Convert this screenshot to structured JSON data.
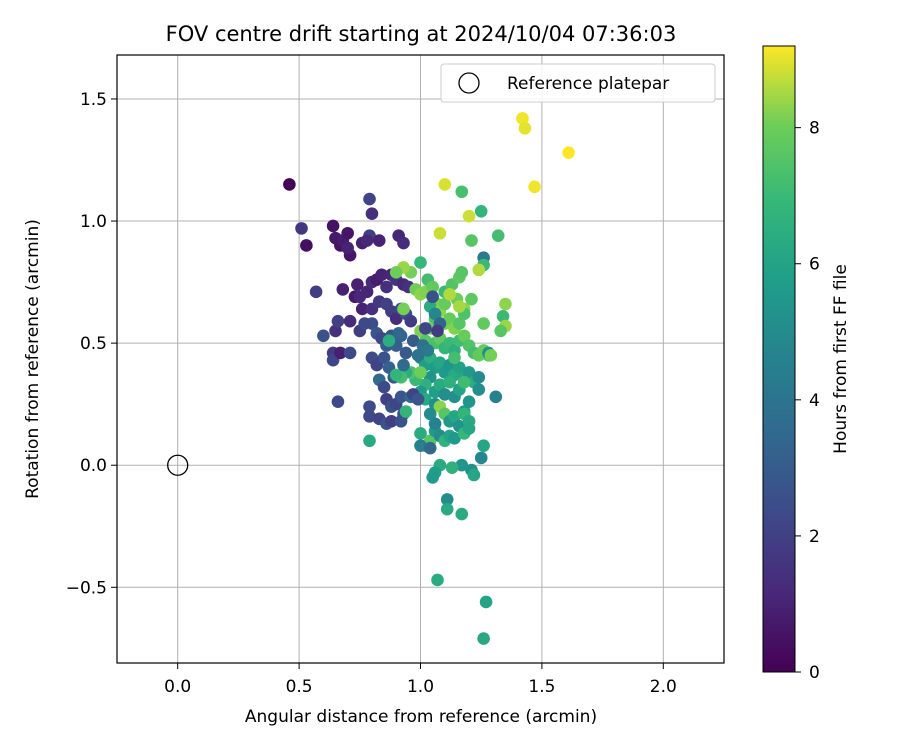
{
  "chart_data": {
    "type": "scatter",
    "title": "FOV centre drift starting at 2024/10/04 07:36:03",
    "xlabel": "Angular distance from reference (arcmin)",
    "ylabel": "Rotation from reference (arcmin)",
    "xlim": [
      -0.25,
      2.25
    ],
    "ylim": [
      -0.81,
      1.68
    ],
    "x_ticks": [
      0.0,
      0.5,
      1.0,
      1.5,
      2.0
    ],
    "x_tick_labels": [
      "0.0",
      "0.5",
      "1.0",
      "1.5",
      "2.0"
    ],
    "y_ticks": [
      -0.5,
      0.0,
      0.5,
      1.0,
      1.5
    ],
    "y_tick_labels": [
      "−0.5",
      "0.0",
      "0.5",
      "1.0",
      "1.5"
    ],
    "grid": true,
    "legend": {
      "placement": "top-right",
      "entries": [
        "Reference platepar"
      ]
    },
    "reference_point": {
      "name": "Reference platepar",
      "x": 0.0,
      "y": 0.0,
      "marker": "open-circle"
    },
    "colorbar": {
      "label": "Hours from first FF file",
      "range": [
        0,
        9.2
      ],
      "ticks": [
        0,
        2,
        4,
        6,
        8
      ],
      "tick_labels": [
        "0",
        "2",
        "4",
        "6",
        "8"
      ],
      "colormap": "viridis"
    },
    "points": [
      [
        0.46,
        1.15,
        0.1
      ],
      [
        0.51,
        0.97,
        1.7
      ],
      [
        0.53,
        0.9,
        0.4
      ],
      [
        0.57,
        0.71,
        1.9
      ],
      [
        0.6,
        0.53,
        2.6
      ],
      [
        0.64,
        0.98,
        0.5
      ],
      [
        0.65,
        0.93,
        0.7
      ],
      [
        0.67,
        0.9,
        0.5
      ],
      [
        0.68,
        0.92,
        0.8
      ],
      [
        0.7,
        0.95,
        0.6
      ],
      [
        0.71,
        0.86,
        0.6
      ],
      [
        0.7,
        0.89,
        1.0
      ],
      [
        0.68,
        0.72,
        0.9
      ],
      [
        0.65,
        0.55,
        1.5
      ],
      [
        0.64,
        0.46,
        1.8
      ],
      [
        0.64,
        0.43,
        2.2
      ],
      [
        0.67,
        0.46,
        0.9
      ],
      [
        0.66,
        0.59,
        2.0
      ],
      [
        0.71,
        0.59,
        1.3
      ],
      [
        0.73,
        0.69,
        0.7
      ],
      [
        0.74,
        0.74,
        0.9
      ],
      [
        0.75,
        0.69,
        1.2
      ],
      [
        0.76,
        0.64,
        1.0
      ],
      [
        0.78,
        0.71,
        1.1
      ],
      [
        0.8,
        0.75,
        1.3
      ],
      [
        0.82,
        0.76,
        0.8
      ],
      [
        0.84,
        0.78,
        1.0
      ],
      [
        0.86,
        0.73,
        1.4
      ],
      [
        0.88,
        0.78,
        1.1
      ],
      [
        0.9,
        0.76,
        1.6
      ],
      [
        0.93,
        0.74,
        1.2
      ],
      [
        0.95,
        0.73,
        1.5
      ],
      [
        0.8,
        0.64,
        1.4
      ],
      [
        0.83,
        0.67,
        1.7
      ],
      [
        0.86,
        0.66,
        2.0
      ],
      [
        0.88,
        0.63,
        1.9
      ],
      [
        0.9,
        0.6,
        1.3
      ],
      [
        0.92,
        0.64,
        2.2
      ],
      [
        0.94,
        0.62,
        2.4
      ],
      [
        0.96,
        0.59,
        1.8
      ],
      [
        0.79,
        1.09,
        2.1
      ],
      [
        0.8,
        1.03,
        1.4
      ],
      [
        0.79,
        0.94,
        2.0
      ],
      [
        0.76,
        0.91,
        0.9
      ],
      [
        0.78,
        0.92,
        1.2
      ],
      [
        0.83,
        0.92,
        1.0
      ],
      [
        0.91,
        0.94,
        1.1
      ],
      [
        0.93,
        0.91,
        1.3
      ],
      [
        0.8,
        0.58,
        2.5
      ],
      [
        0.82,
        0.54,
        2.8
      ],
      [
        0.84,
        0.52,
        2.2
      ],
      [
        0.86,
        0.49,
        3.0
      ],
      [
        0.88,
        0.53,
        2.6
      ],
      [
        0.9,
        0.49,
        3.1
      ],
      [
        0.92,
        0.53,
        3.3
      ],
      [
        0.94,
        0.46,
        2.9
      ],
      [
        0.71,
        0.46,
        2.3
      ],
      [
        0.75,
        0.55,
        1.9
      ],
      [
        0.77,
        0.58,
        2.3
      ],
      [
        0.8,
        0.44,
        2.4
      ],
      [
        0.82,
        0.41,
        2.1
      ],
      [
        0.85,
        0.44,
        2.7
      ],
      [
        0.87,
        0.4,
        3.2
      ],
      [
        0.89,
        0.36,
        2.9
      ],
      [
        0.83,
        0.35,
        3.6
      ],
      [
        0.85,
        0.32,
        2.4
      ],
      [
        0.86,
        0.27,
        2.0
      ],
      [
        0.88,
        0.24,
        2.6
      ],
      [
        0.9,
        0.25,
        2.2
      ],
      [
        0.92,
        0.28,
        2.8
      ],
      [
        0.93,
        0.21,
        2.5
      ],
      [
        0.96,
        0.28,
        3.4
      ],
      [
        0.79,
        0.24,
        2.4
      ],
      [
        0.79,
        0.2,
        2.3
      ],
      [
        0.83,
        0.19,
        2.1
      ],
      [
        0.86,
        0.17,
        2.7
      ],
      [
        0.88,
        0.18,
        2.0
      ],
      [
        0.92,
        0.18,
        2.6
      ],
      [
        0.66,
        0.26,
        2.3
      ],
      [
        0.79,
        0.1,
        6.2
      ],
      [
        0.98,
        0.72,
        8.0
      ],
      [
        1.0,
        0.7,
        8.3
      ],
      [
        1.02,
        0.71,
        8.2
      ],
      [
        0.96,
        0.79,
        8.1
      ],
      [
        0.93,
        0.81,
        8.4
      ],
      [
        0.9,
        0.79,
        8.0
      ],
      [
        0.93,
        0.64,
        8.1
      ],
      [
        1.0,
        0.83,
        6.9
      ],
      [
        1.03,
        0.76,
        7.2
      ],
      [
        1.05,
        0.73,
        7.8
      ],
      [
        1.07,
        0.66,
        8.1
      ],
      [
        1.1,
        0.71,
        7.0
      ],
      [
        1.13,
        0.74,
        7.5
      ],
      [
        1.16,
        0.77,
        7.7
      ],
      [
        1.17,
        0.79,
        7.6
      ],
      [
        1.15,
        0.68,
        8.0
      ],
      [
        1.04,
        0.65,
        6.4
      ],
      [
        1.06,
        0.6,
        7.3
      ],
      [
        1.08,
        0.63,
        8.3
      ],
      [
        1.1,
        0.58,
        8.1
      ],
      [
        1.12,
        0.6,
        7.9
      ],
      [
        1.14,
        0.56,
        8.2
      ],
      [
        1.16,
        0.58,
        7.6
      ],
      [
        1.18,
        0.64,
        8.3
      ],
      [
        1.0,
        0.55,
        8.2
      ],
      [
        1.02,
        0.51,
        7.6
      ],
      [
        1.04,
        0.56,
        8.0
      ],
      [
        1.06,
        0.5,
        7.3
      ],
      [
        1.08,
        0.52,
        7.8
      ],
      [
        1.1,
        0.48,
        6.8
      ],
      [
        1.12,
        0.5,
        7.0
      ],
      [
        1.14,
        0.47,
        6.5
      ],
      [
        1.16,
        0.51,
        7.1
      ],
      [
        1.18,
        0.53,
        7.9
      ],
      [
        1.2,
        0.49,
        7.5
      ],
      [
        1.22,
        0.46,
        7.2
      ],
      [
        1.24,
        0.45,
        7.8
      ],
      [
        1.26,
        0.47,
        7.9
      ],
      [
        1.28,
        0.45,
        7.6
      ],
      [
        1.28,
        0.46,
        5.2
      ],
      [
        1.0,
        0.44,
        5.0
      ],
      [
        1.02,
        0.41,
        5.8
      ],
      [
        1.04,
        0.44,
        6.5
      ],
      [
        1.06,
        0.4,
        5.7
      ],
      [
        1.08,
        0.42,
        6.1
      ],
      [
        1.1,
        0.38,
        5.6
      ],
      [
        1.12,
        0.41,
        5.4
      ],
      [
        1.14,
        0.37,
        6.3
      ],
      [
        1.16,
        0.4,
        5.9
      ],
      [
        1.18,
        0.36,
        6.1
      ],
      [
        1.2,
        0.38,
        5.5
      ],
      [
        1.22,
        0.34,
        6.4
      ],
      [
        1.24,
        0.36,
        5.0
      ],
      [
        1.04,
        0.36,
        5.3
      ],
      [
        1.02,
        0.33,
        6.6
      ],
      [
        1.0,
        0.3,
        5.6
      ],
      [
        0.98,
        0.35,
        7.0
      ],
      [
        0.96,
        0.38,
        7.4
      ],
      [
        0.94,
        0.38,
        6.4
      ],
      [
        0.92,
        0.36,
        7.2
      ],
      [
        0.9,
        0.37,
        6.8
      ],
      [
        0.94,
        0.22,
        6.8
      ],
      [
        1.0,
        0.38,
        8.0
      ],
      [
        1.02,
        0.27,
        6.2
      ],
      [
        1.06,
        0.3,
        5.8
      ],
      [
        1.08,
        0.33,
        6.3
      ],
      [
        1.1,
        0.29,
        5.1
      ],
      [
        1.12,
        0.34,
        6.6
      ],
      [
        1.14,
        0.28,
        5.2
      ],
      [
        1.16,
        0.31,
        6.0
      ],
      [
        1.18,
        0.22,
        5.7
      ],
      [
        1.2,
        0.26,
        5.4
      ],
      [
        1.06,
        0.25,
        5.1
      ],
      [
        1.08,
        0.24,
        8.3
      ],
      [
        1.1,
        0.21,
        7.6
      ],
      [
        1.12,
        0.18,
        5.5
      ],
      [
        1.14,
        0.2,
        6.1
      ],
      [
        1.16,
        0.16,
        5.3
      ],
      [
        1.18,
        0.21,
        6.8
      ],
      [
        1.2,
        0.18,
        6.2
      ],
      [
        1.0,
        0.13,
        6.4
      ],
      [
        1.02,
        0.08,
        6.6
      ],
      [
        1.04,
        0.1,
        7.6
      ],
      [
        1.06,
        0.14,
        5.7
      ],
      [
        1.08,
        0.12,
        5.0
      ],
      [
        1.1,
        0.1,
        6.7
      ],
      [
        1.12,
        0.12,
        6.0
      ],
      [
        1.14,
        0.11,
        5.6
      ],
      [
        1.18,
        0.13,
        6.9
      ],
      [
        1.2,
        0.15,
        6.1
      ],
      [
        1.0,
        0.08,
        4.5
      ],
      [
        1.04,
        0.07,
        3.4
      ],
      [
        1.26,
        0.08,
        6.1
      ],
      [
        1.25,
        0.03,
        4.8
      ],
      [
        1.21,
        -0.02,
        5.2
      ],
      [
        1.22,
        -0.04,
        6.1
      ],
      [
        1.17,
        0.0,
        5.4
      ],
      [
        1.13,
        -0.01,
        6.6
      ],
      [
        1.08,
        0.0,
        6.3
      ],
      [
        1.06,
        -0.03,
        5.8
      ],
      [
        1.05,
        -0.05,
        5.6
      ],
      [
        1.11,
        -0.14,
        5.0
      ],
      [
        1.11,
        -0.18,
        6.3
      ],
      [
        1.17,
        -0.2,
        6.3
      ],
      [
        1.07,
        -0.47,
        6.4
      ],
      [
        1.27,
        -0.56,
        6.0
      ],
      [
        1.26,
        -0.71,
        6.2
      ],
      [
        1.26,
        0.85,
        4.2
      ],
      [
        1.25,
        1.04,
        6.8
      ],
      [
        1.2,
        1.02,
        8.8
      ],
      [
        1.17,
        1.12,
        7.3
      ],
      [
        1.1,
        1.15,
        8.9
      ],
      [
        1.08,
        0.95,
        8.8
      ],
      [
        1.21,
        0.92,
        7.6
      ],
      [
        1.26,
        0.82,
        7.0
      ],
      [
        1.24,
        0.8,
        8.6
      ],
      [
        1.32,
        0.94,
        7.2
      ],
      [
        1.35,
        0.66,
        8.3
      ],
      [
        1.34,
        0.61,
        7.0
      ],
      [
        1.35,
        0.57,
        8.4
      ],
      [
        1.33,
        0.55,
        7.6
      ],
      [
        1.29,
        0.45,
        8.1
      ],
      [
        1.26,
        0.58,
        7.8
      ],
      [
        1.21,
        0.68,
        7.7
      ],
      [
        1.18,
        0.62,
        7.4
      ],
      [
        1.24,
        0.31,
        5.1
      ],
      [
        1.31,
        0.28,
        4.6
      ],
      [
        1.18,
        0.34,
        7.1
      ],
      [
        1.42,
        1.42,
        9.1
      ],
      [
        1.43,
        1.38,
        9.0
      ],
      [
        1.47,
        1.14,
        9.1
      ],
      [
        1.61,
        1.28,
        9.2
      ],
      [
        1.1,
        0.66,
        7.9
      ],
      [
        1.12,
        0.7,
        8.6
      ],
      [
        1.16,
        0.65,
        8.5
      ],
      [
        1.14,
        0.44,
        7.2
      ],
      [
        0.97,
        0.29,
        2.1
      ],
      [
        0.99,
        0.27,
        2.8
      ],
      [
        0.91,
        0.54,
        3.4
      ],
      [
        0.97,
        0.51,
        2.9
      ],
      [
        1.01,
        0.49,
        3.8
      ],
      [
        1.03,
        0.47,
        4.2
      ],
      [
        0.99,
        0.45,
        4.0
      ],
      [
        0.93,
        0.41,
        3.6
      ],
      [
        0.87,
        0.51,
        6.5
      ],
      [
        1.04,
        0.21,
        5.0
      ],
      [
        1.06,
        0.17,
        4.6
      ],
      [
        1.02,
        0.56,
        2.2
      ],
      [
        1.06,
        0.62,
        4.8
      ],
      [
        1.08,
        0.58,
        3.3
      ],
      [
        1.05,
        0.69,
        2.6
      ],
      [
        1.07,
        0.55,
        1.8
      ]
    ]
  }
}
